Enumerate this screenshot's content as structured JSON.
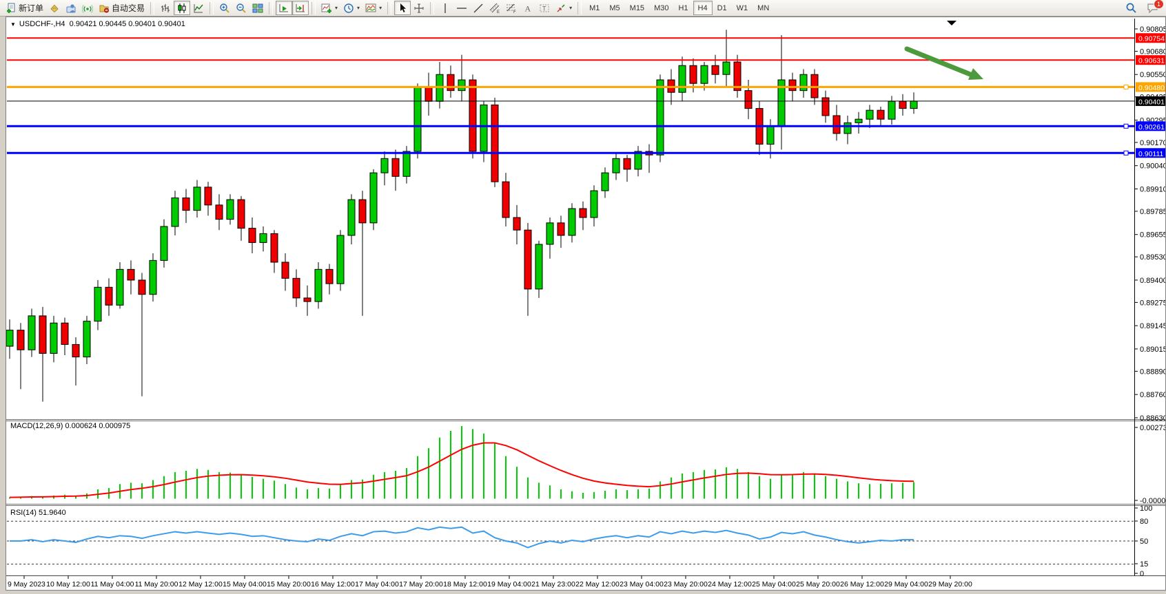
{
  "toolbar": {
    "new_order_label": "新订单",
    "autotrading_label": "自动交易",
    "dropdown_glyph": "▾",
    "timeframes": [
      "M1",
      "M5",
      "M15",
      "M30",
      "H1",
      "H4",
      "D1",
      "W1",
      "MN"
    ],
    "active_timeframe": "H4",
    "notification_count": "1",
    "icons": [
      "new-order",
      "styler-bucket",
      "community",
      "signals",
      "autotrading",
      "bar-chart",
      "candlestick-chart",
      "line-chart",
      "zoom-in",
      "zoom-out",
      "tile-windows",
      "auto-scroll",
      "chart-shift",
      "indicators",
      "periods",
      "templates",
      "cursor",
      "crosshair",
      "vertical-line",
      "horizontal-line",
      "trendline",
      "equidistant-channel",
      "fibonacci",
      "text",
      "text-label",
      "arrows",
      "search",
      "chat"
    ]
  },
  "chart": {
    "collapse_glyph": "▼",
    "title_symbol": "USDCHF-,H4",
    "title_quotes": "0.90421 0.90445 0.90401 0.90401"
  },
  "indicators": {
    "macd_label": "MACD(12,26,9) 0.000624 0.000975",
    "rsi_label": "RSI(14) 51.9640"
  },
  "chart_data": {
    "type": "candlestick",
    "symbol": "USDCHF",
    "period": "H4",
    "ylim": [
      0.8863,
      0.90855
    ],
    "colors": {
      "up": "#00CB00",
      "down": "#EE0000",
      "wick": "#000000",
      "macd_histogram": "#00CF00",
      "macd_signal": "#FF0000",
      "rsi_line": "#3E9BE9"
    },
    "price_axis_ticks": [
      "0.90805",
      "0.90680",
      "0.90550",
      "0.90425",
      "0.90295",
      "0.90170",
      "0.90040",
      "0.89910",
      "0.89785",
      "0.89655",
      "0.89530",
      "0.89400",
      "0.89275",
      "0.89145",
      "0.89015",
      "0.88890",
      "0.88760",
      "0.88630"
    ],
    "hlines": [
      {
        "price": 0.90754,
        "label": "0.90754",
        "color": "#FF0000",
        "width": 2,
        "handle": false
      },
      {
        "price": 0.90631,
        "label": "0.90631",
        "color": "#FF0000",
        "width": 2,
        "handle": false
      },
      {
        "price": 0.9048,
        "label": "0.90480",
        "color": "#FFA500",
        "width": 3,
        "handle": true
      },
      {
        "price": 0.90401,
        "label": "0.90401",
        "color": "#000000",
        "width": 1,
        "handle": false
      },
      {
        "price": 0.90261,
        "label": "0.90261",
        "color": "#0000FF",
        "width": 3,
        "handle": true
      },
      {
        "price": 0.90111,
        "label": "0.90111",
        "color": "#0000FF",
        "width": 3,
        "handle": true
      }
    ],
    "time_ticks": [
      "9 May 2023",
      "10 May 12:00",
      "11 May 04:00",
      "11 May 20:00",
      "12 May 12:00",
      "15 May 04:00",
      "15 May 20:00",
      "16 May 12:00",
      "17 May 04:00",
      "17 May 20:00",
      "18 May 12:00",
      "19 May 04:00",
      "21 May 23:00",
      "22 May 12:00",
      "23 May 04:00",
      "23 May 20:00",
      "24 May 12:00",
      "25 May 04:00",
      "25 May 20:00",
      "26 May 12:00",
      "29 May 04:00",
      "29 May 20:00"
    ],
    "candles": [
      [
        0.8903,
        0.8918,
        0.8896,
        0.8912
      ],
      [
        0.8912,
        0.8916,
        0.8879,
        0.8901
      ],
      [
        0.8901,
        0.8924,
        0.8897,
        0.892
      ],
      [
        0.892,
        0.8925,
        0.8872,
        0.8899
      ],
      [
        0.8899,
        0.892,
        0.8894,
        0.8916
      ],
      [
        0.8916,
        0.8919,
        0.8898,
        0.8904
      ],
      [
        0.8904,
        0.8908,
        0.8881,
        0.8897
      ],
      [
        0.8897,
        0.892,
        0.8893,
        0.8917
      ],
      [
        0.8917,
        0.894,
        0.8912,
        0.8936
      ],
      [
        0.8936,
        0.8941,
        0.892,
        0.8926
      ],
      [
        0.8926,
        0.895,
        0.8924,
        0.8946
      ],
      [
        0.8946,
        0.8951,
        0.8932,
        0.894
      ],
      [
        0.894,
        0.8944,
        0.8875,
        0.8932
      ],
      [
        0.8932,
        0.8955,
        0.8928,
        0.8951
      ],
      [
        0.8951,
        0.8974,
        0.8947,
        0.897
      ],
      [
        0.897,
        0.899,
        0.8965,
        0.8986
      ],
      [
        0.8986,
        0.8991,
        0.8972,
        0.8979
      ],
      [
        0.8979,
        0.8996,
        0.8975,
        0.8992
      ],
      [
        0.8992,
        0.8995,
        0.8976,
        0.8982
      ],
      [
        0.8982,
        0.8988,
        0.8968,
        0.8974
      ],
      [
        0.8974,
        0.8988,
        0.8971,
        0.8985
      ],
      [
        0.8985,
        0.8987,
        0.8962,
        0.8969
      ],
      [
        0.8969,
        0.8975,
        0.8955,
        0.8961
      ],
      [
        0.8961,
        0.897,
        0.8956,
        0.8966
      ],
      [
        0.8966,
        0.8968,
        0.8944,
        0.895
      ],
      [
        0.895,
        0.8955,
        0.8934,
        0.8941
      ],
      [
        0.8941,
        0.8946,
        0.8925,
        0.893
      ],
      [
        0.893,
        0.8937,
        0.892,
        0.8928
      ],
      [
        0.8928,
        0.895,
        0.8924,
        0.8946
      ],
      [
        0.8946,
        0.8949,
        0.8932,
        0.8938
      ],
      [
        0.8938,
        0.8968,
        0.8934,
        0.8965
      ],
      [
        0.8965,
        0.8988,
        0.896,
        0.8985
      ],
      [
        0.8985,
        0.899,
        0.892,
        0.8972
      ],
      [
        0.8972,
        0.9002,
        0.8968,
        0.9
      ],
      [
        0.9,
        0.9012,
        0.8993,
        0.9008
      ],
      [
        0.9008,
        0.9013,
        0.899,
        0.8998
      ],
      [
        0.8998,
        0.9015,
        0.8994,
        0.9012
      ],
      [
        0.9012,
        0.905,
        0.9008,
        0.9048
      ],
      [
        0.9048,
        0.9056,
        0.9032,
        0.904
      ],
      [
        0.904,
        0.9062,
        0.9036,
        0.9055
      ],
      [
        0.9055,
        0.906,
        0.9042,
        0.9046
      ],
      [
        0.9046,
        0.9066,
        0.904,
        0.9052
      ],
      [
        0.9052,
        0.9055,
        0.9008,
        0.9012
      ],
      [
        0.9012,
        0.904,
        0.9006,
        0.9038
      ],
      [
        0.9038,
        0.9042,
        0.8992,
        0.8995
      ],
      [
        0.8995,
        0.9,
        0.897,
        0.8975
      ],
      [
        0.8975,
        0.8982,
        0.896,
        0.8968
      ],
      [
        0.8968,
        0.8972,
        0.892,
        0.8935
      ],
      [
        0.8935,
        0.8962,
        0.893,
        0.896
      ],
      [
        0.896,
        0.8975,
        0.8952,
        0.8972
      ],
      [
        0.8972,
        0.8976,
        0.8958,
        0.8965
      ],
      [
        0.8965,
        0.8983,
        0.8961,
        0.898
      ],
      [
        0.898,
        0.8984,
        0.8968,
        0.8975
      ],
      [
        0.8975,
        0.8993,
        0.897,
        0.899
      ],
      [
        0.899,
        0.9003,
        0.8986,
        0.9
      ],
      [
        0.9,
        0.9011,
        0.8996,
        0.9008
      ],
      [
        0.9008,
        0.901,
        0.8995,
        0.9002
      ],
      [
        0.9002,
        0.9015,
        0.8998,
        0.9012
      ],
      [
        0.9012,
        0.9016,
        0.9,
        0.901
      ],
      [
        0.901,
        0.9055,
        0.9006,
        0.9052
      ],
      [
        0.9052,
        0.9058,
        0.9038,
        0.9045
      ],
      [
        0.9045,
        0.9065,
        0.904,
        0.906
      ],
      [
        0.906,
        0.9064,
        0.9045,
        0.905
      ],
      [
        0.905,
        0.9062,
        0.9046,
        0.906
      ],
      [
        0.906,
        0.9066,
        0.905,
        0.9055
      ],
      [
        0.9055,
        0.908,
        0.9048,
        0.9062
      ],
      [
        0.9062,
        0.9066,
        0.9042,
        0.9046
      ],
      [
        0.9046,
        0.9052,
        0.903,
        0.9036
      ],
      [
        0.9036,
        0.904,
        0.901,
        0.9016
      ],
      [
        0.9016,
        0.903,
        0.9008,
        0.9026
      ],
      [
        0.9026,
        0.9077,
        0.9013,
        0.9052
      ],
      [
        0.9052,
        0.9056,
        0.904,
        0.9046
      ],
      [
        0.9046,
        0.9058,
        0.9042,
        0.9055
      ],
      [
        0.9055,
        0.9058,
        0.9038,
        0.9042
      ],
      [
        0.9042,
        0.9046,
        0.9028,
        0.9032
      ],
      [
        0.9032,
        0.9038,
        0.9018,
        0.9022
      ],
      [
        0.9022,
        0.9032,
        0.9016,
        0.9028
      ],
      [
        0.9028,
        0.9034,
        0.9022,
        0.903
      ],
      [
        0.903,
        0.9038,
        0.9025,
        0.9035
      ],
      [
        0.9035,
        0.9037,
        0.9026,
        0.903
      ],
      [
        0.903,
        0.9043,
        0.9027,
        0.904
      ],
      [
        0.904,
        0.9044,
        0.9032,
        0.9036
      ],
      [
        0.9036,
        0.9045,
        0.9033,
        0.90401
      ]
    ],
    "indicator_panels": [
      {
        "name": "MACD",
        "params": "12,26,9",
        "axis_max": "0.002731",
        "axis_min": "-0.000038",
        "values": [
          5e-05,
          8e-05,
          0.0001,
          8e-05,
          0.00012,
          0.00015,
          0.00012,
          0.0002,
          0.00035,
          0.0004,
          0.00055,
          0.0006,
          0.00058,
          0.0007,
          0.00085,
          0.001,
          0.00105,
          0.00112,
          0.00108,
          0.001,
          0.00098,
          0.00092,
          0.00082,
          0.00075,
          0.00068,
          0.00055,
          0.00042,
          0.00035,
          0.0004,
          0.00038,
          0.00052,
          0.0007,
          0.00072,
          0.0009,
          0.001,
          0.00105,
          0.00115,
          0.0016,
          0.0019,
          0.0023,
          0.00255,
          0.00273,
          0.00262,
          0.00245,
          0.0021,
          0.0016,
          0.0012,
          0.0008,
          0.0006,
          0.0005,
          0.00035,
          0.00028,
          0.00022,
          0.00025,
          0.0003,
          0.00035,
          0.00032,
          0.00035,
          0.00038,
          0.00065,
          0.0008,
          0.00095,
          0.001,
          0.00108,
          0.0011,
          0.00118,
          0.00112,
          0.001,
          0.00085,
          0.00075,
          0.0009,
          0.00092,
          0.001,
          0.00095,
          0.00085,
          0.00075,
          0.00065,
          0.00058,
          0.00055,
          0.00056,
          0.00058,
          0.0006,
          0.000624
        ]
      },
      {
        "name": "RSI",
        "params": "14",
        "levels": [
          80,
          50,
          15
        ],
        "axis_ticks": [
          "100",
          "80",
          "50",
          "15",
          "0"
        ],
        "values": [
          50,
          50,
          52,
          49,
          52,
          50,
          48,
          53,
          57,
          55,
          58,
          57,
          54,
          58,
          61,
          64,
          62,
          64,
          62,
          60,
          62,
          60,
          57,
          58,
          55,
          52,
          50,
          49,
          53,
          51,
          57,
          61,
          58,
          64,
          65,
          62,
          64,
          70,
          67,
          71,
          69,
          71,
          62,
          65,
          55,
          50,
          47,
          40,
          46,
          50,
          47,
          51,
          49,
          53,
          56,
          58,
          55,
          58,
          56,
          64,
          61,
          65,
          62,
          65,
          63,
          66,
          62,
          59,
          53,
          56,
          63,
          61,
          64,
          59,
          56,
          52,
          49,
          47,
          49,
          51,
          50,
          52,
          51.96
        ]
      }
    ],
    "annotation_arrow": {
      "from": [
        1307,
        46
      ],
      "to": [
        1418,
        90
      ],
      "color": "#4C9A3C"
    }
  }
}
